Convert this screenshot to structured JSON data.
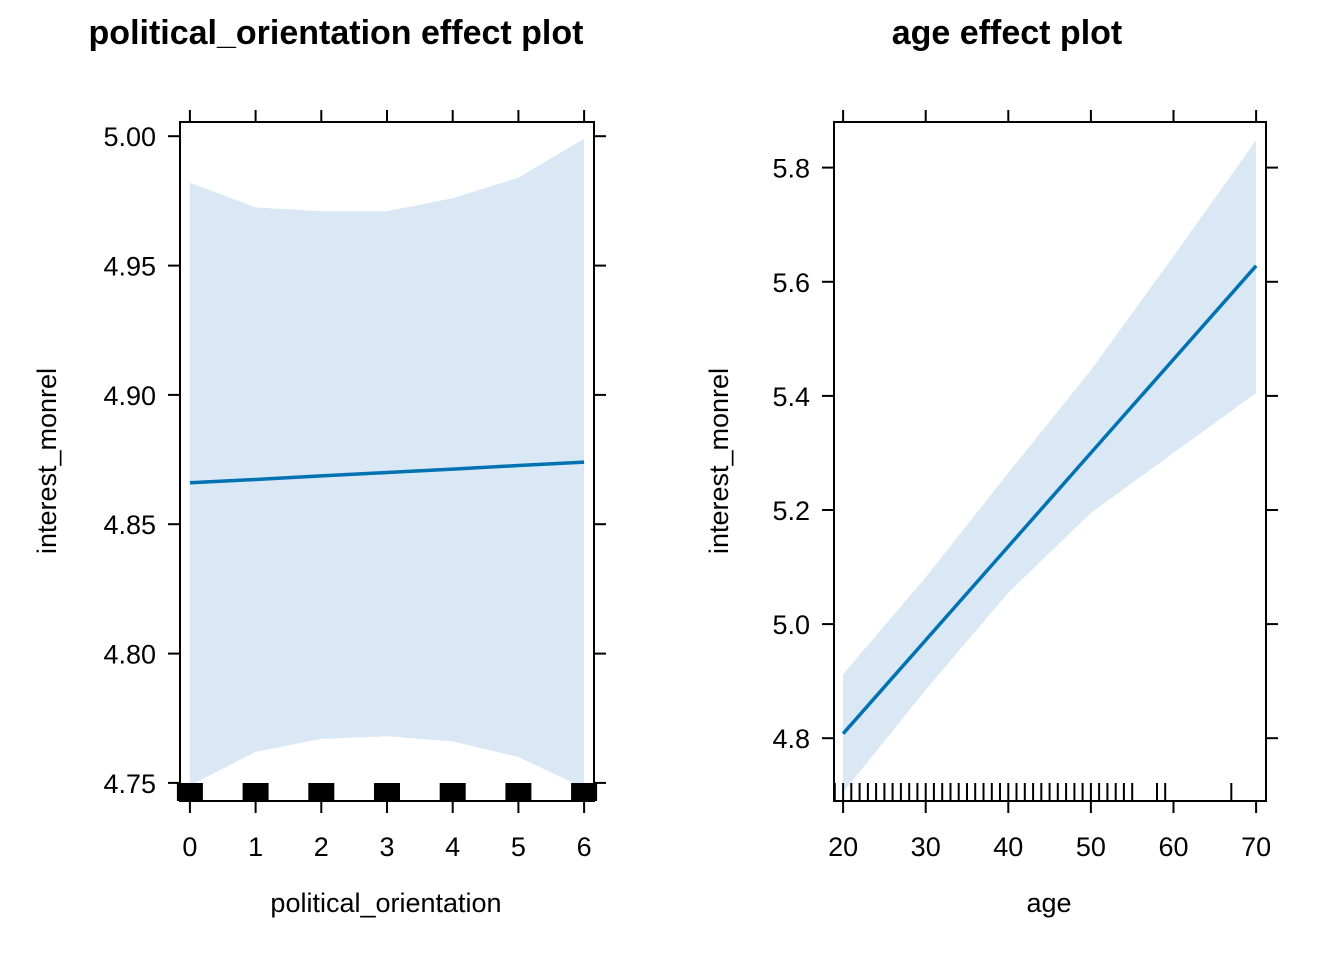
{
  "chart_data": [
    {
      "type": "line",
      "title": "political_orientation effect plot",
      "xlabel": "political_orientation",
      "ylabel": "interest_monrel",
      "xlim": [
        -0.15,
        6.15
      ],
      "ylim": [
        4.743,
        5.0055
      ],
      "xticks": [
        0,
        1,
        2,
        3,
        4,
        5,
        6
      ],
      "yticks": [
        "4.75",
        "4.80",
        "4.85",
        "4.90",
        "4.95",
        "5.00"
      ],
      "band_color": "#d9e8f4",
      "line_color": "#0072b2",
      "series": [
        {
          "x": [
            0,
            1,
            2,
            3,
            4,
            5,
            6
          ],
          "y": [
            4.866,
            4.8673,
            4.8687,
            4.87,
            4.8713,
            4.8727,
            4.874
          ],
          "lower": [
            4.749,
            4.762,
            4.767,
            4.768,
            4.766,
            4.76,
            4.748
          ],
          "upper": [
            4.982,
            4.9725,
            4.971,
            4.971,
            4.976,
            4.984,
            4.999
          ]
        }
      ],
      "rug": {
        "style": "block",
        "x": [
          0,
          1,
          2,
          3,
          4,
          5,
          6
        ]
      }
    },
    {
      "type": "line",
      "title": "age effect plot",
      "xlabel": "age",
      "ylabel": "interest_monrel",
      "xlim": [
        18.9,
        71.2
      ],
      "ylim": [
        4.69,
        5.88
      ],
      "xticks": [
        20,
        30,
        40,
        50,
        60,
        70
      ],
      "yticks": [
        "4.8",
        "5.0",
        "5.2",
        "5.4",
        "5.6",
        "5.8"
      ],
      "band_color": "#d9e8f4",
      "line_color": "#0072b2",
      "series": [
        {
          "x": [
            20,
            30,
            40,
            50,
            60,
            70
          ],
          "y": [
            4.808,
            4.972,
            5.136,
            5.3,
            5.464,
            5.628
          ],
          "lower": [
            4.705,
            4.885,
            5.055,
            5.195,
            5.3,
            5.405
          ],
          "upper": [
            4.912,
            5.082,
            5.265,
            5.445,
            5.645,
            5.848
          ]
        }
      ],
      "rug": {
        "style": "line",
        "x": [
          19,
          20,
          21,
          22,
          23,
          24,
          25,
          26,
          27,
          28,
          29,
          30,
          31,
          32,
          33,
          34,
          35,
          36,
          37,
          38,
          39,
          40,
          41,
          42,
          43,
          44,
          45,
          46,
          47,
          48,
          49,
          50,
          51,
          52,
          53,
          54,
          55,
          58,
          59,
          67
        ]
      }
    }
  ]
}
